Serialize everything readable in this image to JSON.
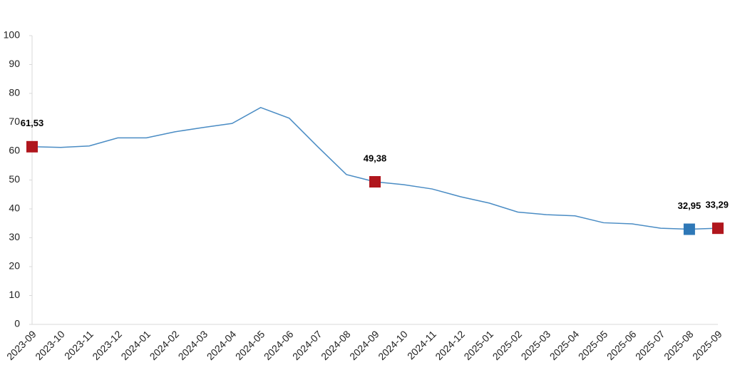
{
  "chart_data": {
    "type": "line",
    "categories": [
      "2023-09",
      "2023-10",
      "2023-11",
      "2023-12",
      "2024-01",
      "2024-02",
      "2024-03",
      "2024-04",
      "2024-05",
      "2024-06",
      "2024-07",
      "2024-08",
      "2024-09",
      "2024-10",
      "2024-11",
      "2024-12",
      "2025-01",
      "2025-02",
      "2025-03",
      "2025-04",
      "2025-05",
      "2025-06",
      "2025-07",
      "2025-08",
      "2025-09"
    ],
    "values": [
      61.53,
      61.3,
      61.8,
      64.6,
      64.6,
      66.7,
      68.2,
      69.6,
      75.1,
      71.4,
      61.5,
      51.9,
      49.38,
      48.4,
      46.9,
      44.2,
      42.0,
      38.9,
      38.0,
      37.6,
      35.2,
      34.8,
      33.3,
      32.95,
      33.29
    ],
    "value_labels": [
      "61,53",
      null,
      null,
      null,
      null,
      null,
      null,
      null,
      null,
      null,
      null,
      null,
      "49,38",
      null,
      null,
      null,
      null,
      null,
      null,
      null,
      null,
      null,
      null,
      "32,95",
      "33,29"
    ],
    "marker_colors": [
      "#b0161d",
      null,
      null,
      null,
      null,
      null,
      null,
      null,
      null,
      null,
      null,
      null,
      "#b0161d",
      null,
      null,
      null,
      null,
      null,
      null,
      null,
      null,
      null,
      null,
      "#2e78b7",
      "#b0161d"
    ],
    "color": "#4a8cc4",
    "ylim": [
      0,
      100
    ],
    "yticks": [
      0,
      10,
      20,
      30,
      40,
      50,
      60,
      70,
      80,
      90,
      100
    ],
    "grid": false
  }
}
